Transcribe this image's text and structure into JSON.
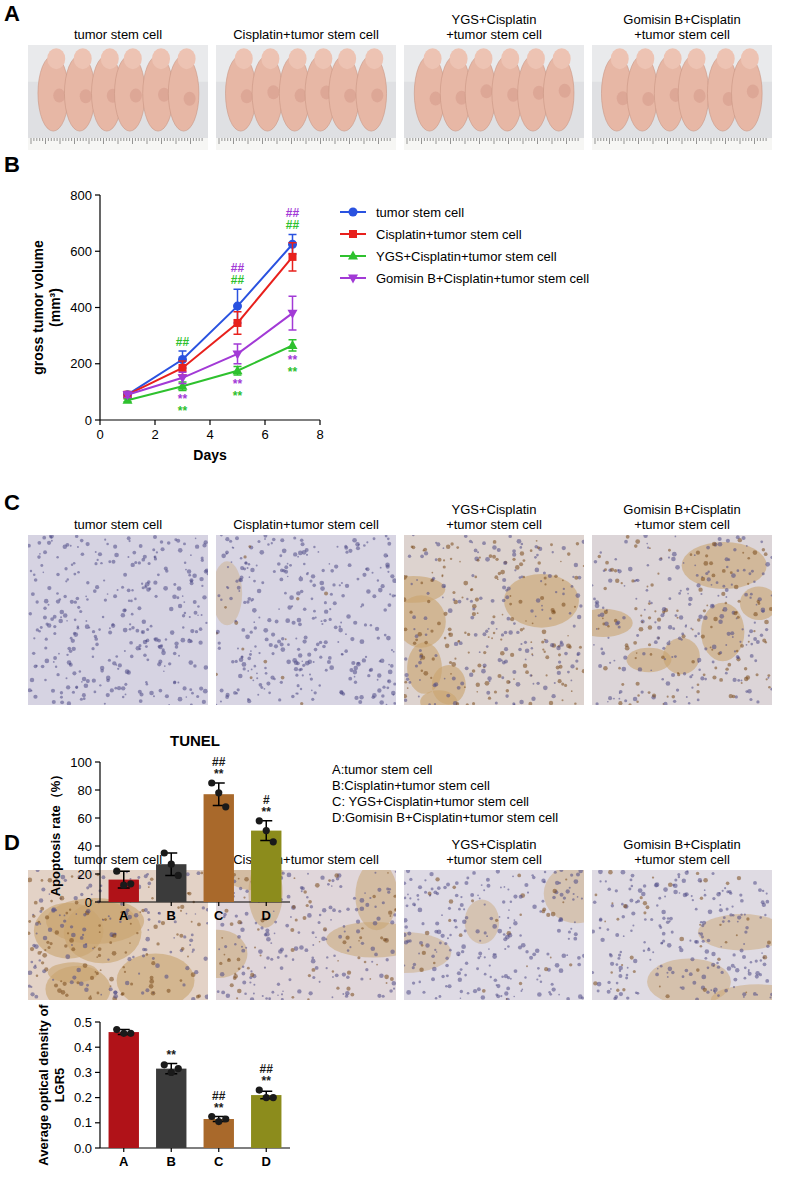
{
  "figure": {
    "panel_letters": [
      "A",
      "B",
      "C",
      "D"
    ],
    "image_rows": [
      {
        "panel": "A",
        "titles": [
          "tumor stem cell",
          "Cisplatin+tumor stem cell",
          "YGS+Cisplatin+tumor stem cell",
          "Gomisin B+Cisplatin+tumor stem cell"
        ]
      },
      {
        "panel": "C",
        "titles": [
          "tumor stem cell",
          "Cisplatin+tumor stem cell",
          "YGS+Cisplatin+tumor stem cell",
          "Gomisin B+Cisplatin+tumor stem cell"
        ]
      },
      {
        "panel": "D",
        "titles": [
          "tumor stem cell",
          "Cisplatin+tumor stem cell",
          "YGS+Cisplatin+tumor stem cell",
          "Gomisin B+Cisplatin+tumor stem cell"
        ]
      }
    ]
  },
  "chart_data": [
    {
      "type": "line",
      "x_title": "Days",
      "y_title": "gross tumor volume (mm³)",
      "x": [
        1,
        3,
        5,
        7
      ],
      "xlim": [
        0,
        8
      ],
      "xticks": [
        0,
        2,
        4,
        6,
        8
      ],
      "ylim": [
        0,
        800
      ],
      "yticks": [
        0,
        200,
        400,
        600,
        800
      ],
      "grid": false,
      "legend": "right",
      "series": [
        {
          "name": "tumor stem cell",
          "color": "#2a52e0",
          "marker": "circle",
          "values": [
            90,
            215,
            405,
            625
          ],
          "errors": [
            10,
            30,
            60,
            35
          ]
        },
        {
          "name": "Cisplatin+tumor stem cell",
          "color": "#e8201c",
          "marker": "square",
          "values": [
            90,
            185,
            345,
            580
          ],
          "errors": [
            10,
            25,
            40,
            50
          ]
        },
        {
          "name": "YGS+Cisplatin+tumor stem cell",
          "color": "#2ec12e",
          "marker": "triangle-up",
          "values": [
            70,
            120,
            175,
            265
          ],
          "errors": [
            5,
            15,
            15,
            20
          ]
        },
        {
          "name": "Gomisin B+Cisplatin+tumor stem cell",
          "color": "#a23ad6",
          "marker": "triangle-down",
          "values": [
            90,
            150,
            235,
            380
          ],
          "errors": [
            10,
            20,
            35,
            60
          ]
        }
      ],
      "annotations": [
        {
          "x": 3,
          "above": [
            {
              "text": "##",
              "color": "#2ec12e"
            }
          ],
          "below": [
            {
              "text": "**",
              "color": "#a23ad6"
            },
            {
              "text": "**",
              "color": "#2ec12e"
            }
          ]
        },
        {
          "x": 5,
          "above": [
            {
              "text": "##",
              "color": "#a23ad6"
            },
            {
              "text": "##",
              "color": "#2ec12e"
            }
          ],
          "below": [
            {
              "text": "**",
              "color": "#a23ad6"
            },
            {
              "text": "**",
              "color": "#2ec12e"
            }
          ]
        },
        {
          "x": 7,
          "above": [
            {
              "text": "##",
              "color": "#a23ad6"
            },
            {
              "text": "##",
              "color": "#2ec12e"
            }
          ],
          "below": [
            {
              "text": "**",
              "color": "#a23ad6"
            },
            {
              "text": "**",
              "color": "#2ec12e"
            }
          ]
        }
      ]
    },
    {
      "type": "bar",
      "title": "TUNEL",
      "y_title": "Apoptosis rate（%）",
      "categories": [
        "A",
        "B",
        "C",
        "D"
      ],
      "values": [
        16,
        27,
        77,
        51
      ],
      "errors": [
        6,
        8,
        8,
        7
      ],
      "points": [
        [
          22,
          12,
          13
        ],
        [
          35,
          27,
          19
        ],
        [
          85,
          78,
          68
        ],
        [
          58,
          51,
          43
        ]
      ],
      "colors": [
        "#b01218",
        "#3b3b3b",
        "#a9692b",
        "#8c8c1c"
      ],
      "ylim": [
        0,
        100
      ],
      "yticks": [
        0,
        20,
        40,
        60,
        80,
        100
      ],
      "significance": [
        [],
        [],
        [
          "##",
          "**"
        ],
        [
          "#",
          "**"
        ]
      ],
      "key": [
        "A:tumor stem cell",
        "B:Cisplatin+tumor stem cell",
        "C: YGS+Cisplatin+tumor stem cell",
        "D:Gomisin B+Cisplatin+tumor stem cell"
      ]
    },
    {
      "type": "bar",
      "y_title": "Average optical density of LGR5",
      "categories": [
        "A",
        "B",
        "C",
        "D"
      ],
      "values": [
        0.46,
        0.315,
        0.115,
        0.21
      ],
      "errors": [
        0.01,
        0.02,
        0.01,
        0.015
      ],
      "points": [
        [
          0.47,
          0.455,
          0.455
        ],
        [
          0.33,
          0.3,
          0.315
        ],
        [
          0.125,
          0.105,
          0.115
        ],
        [
          0.23,
          0.2,
          0.2
        ]
      ],
      "colors": [
        "#b01218",
        "#3b3b3b",
        "#a9692b",
        "#8c8c1c"
      ],
      "ylim": [
        0,
        0.5
      ],
      "yticks": [
        {
          "value": 0,
          "label": "0.0"
        },
        0.1,
        0.2,
        0.3,
        0.4,
        0.5
      ],
      "significance": [
        [],
        [
          "**"
        ],
        [
          "##",
          "**"
        ],
        [
          "##",
          "**"
        ]
      ]
    }
  ]
}
